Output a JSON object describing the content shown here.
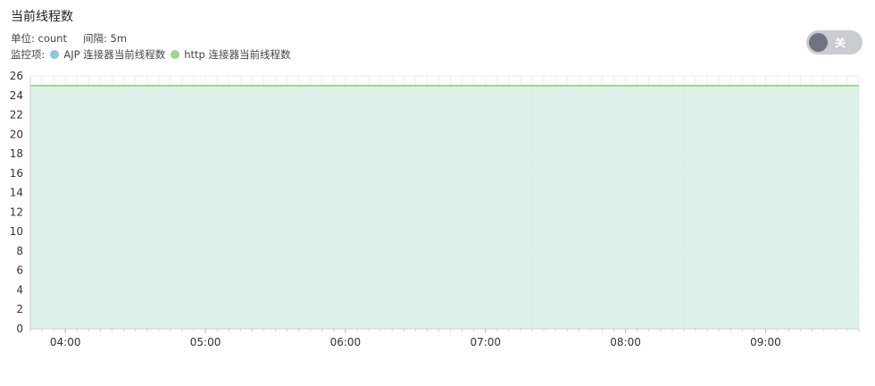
{
  "title": "当前线程数",
  "unit_label": "单位: count",
  "interval_label": "间隔: 5m",
  "legend_prefix": "监控项:",
  "toggle": {
    "label": "关",
    "state": "off"
  },
  "colors": {
    "ajp": "#8ec4e4",
    "http": "#9dd68e",
    "fill": "#d6eee3",
    "grid": "#e7efe9"
  },
  "chart_data": {
    "type": "area",
    "title": "当前线程数",
    "xlabel": "",
    "ylabel": "",
    "ylim": [
      0,
      26
    ],
    "yticks": [
      0,
      2,
      4,
      6,
      8,
      10,
      12,
      14,
      16,
      18,
      20,
      22,
      24,
      26
    ],
    "xtick_labels": [
      "04:00",
      "05:00",
      "06:00",
      "07:00",
      "08:00",
      "09:00"
    ],
    "x_range": [
      "03:45",
      "09:40"
    ],
    "grid": true,
    "series": [
      {
        "name": "AJP 连接器当前线程数",
        "color": "#8ec4e4",
        "x": [
          "03:45",
          "09:40"
        ],
        "values": [
          25,
          25
        ]
      },
      {
        "name": "http 连接器当前线程数",
        "color": "#9dd68e",
        "x": [
          "03:45",
          "09:40"
        ],
        "values": [
          25,
          25
        ]
      }
    ]
  }
}
